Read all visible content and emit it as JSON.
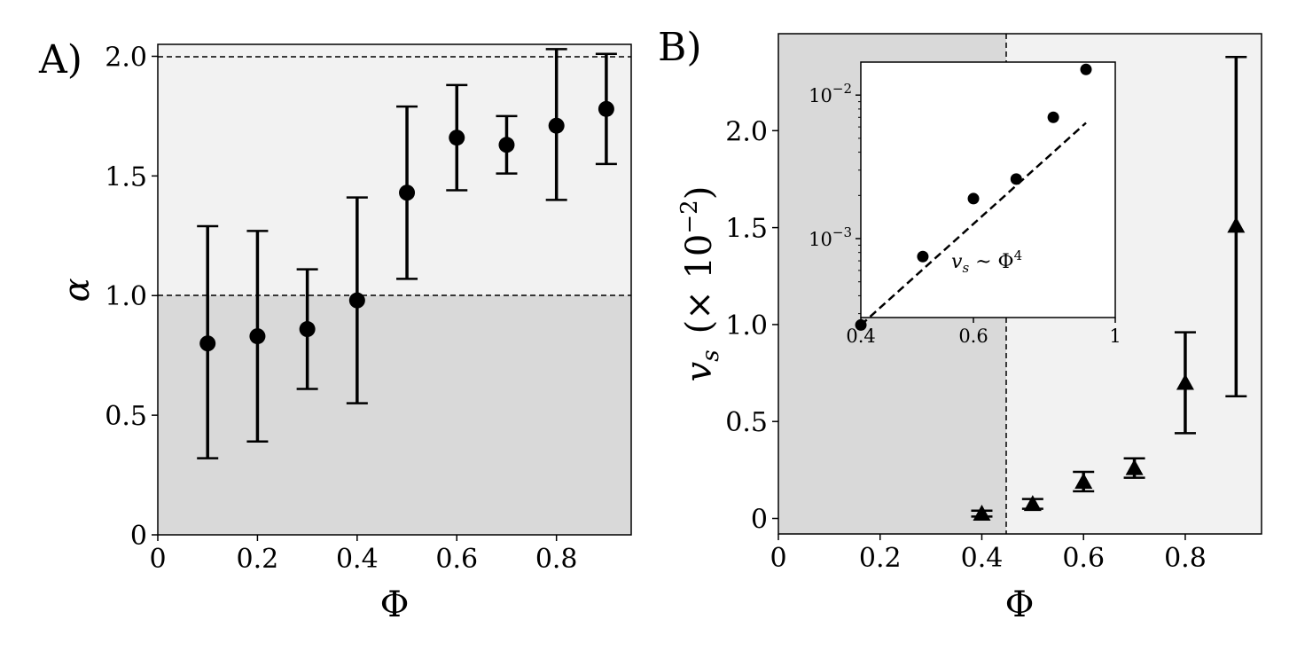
{
  "chart_data": [
    {
      "panel_label": "A)",
      "type": "scatter",
      "markers": "circle",
      "error_bars": true,
      "xlabel": "Φ",
      "ylabel": "α",
      "xlim": [
        0,
        0.95
      ],
      "ylim": [
        0,
        2.05
      ],
      "xticks": [
        0,
        0.2,
        0.4,
        0.6,
        0.8
      ],
      "xtick_labels": [
        "0",
        "0.2",
        "0.4",
        "0.6",
        "0.8"
      ],
      "yticks": [
        0,
        0.5,
        1.0,
        1.5,
        2.0
      ],
      "ytick_labels": [
        "0",
        "0.5",
        "1.0",
        "1.5",
        "2.0"
      ],
      "reference_lines": [
        1.0,
        2.0
      ],
      "shaded_regions": [
        {
          "y_from": 0,
          "y_to": 1.0,
          "color": "#d9d9d9"
        },
        {
          "y_from": 1.0,
          "y_to": 2.05,
          "color": "#f2f2f2"
        }
      ],
      "grid": false,
      "points": [
        {
          "x": 0.1,
          "y": 0.8,
          "lo": 0.32,
          "hi": 1.29
        },
        {
          "x": 0.2,
          "y": 0.83,
          "lo": 0.39,
          "hi": 1.27
        },
        {
          "x": 0.3,
          "y": 0.86,
          "lo": 0.61,
          "hi": 1.11
        },
        {
          "x": 0.4,
          "y": 0.98,
          "lo": 0.55,
          "hi": 1.41
        },
        {
          "x": 0.5,
          "y": 1.43,
          "lo": 1.07,
          "hi": 1.79
        },
        {
          "x": 0.6,
          "y": 1.66,
          "lo": 1.44,
          "hi": 1.88
        },
        {
          "x": 0.7,
          "y": 1.63,
          "lo": 1.51,
          "hi": 1.75
        },
        {
          "x": 0.8,
          "y": 1.71,
          "lo": 1.4,
          "hi": 2.03
        },
        {
          "x": 0.9,
          "y": 1.78,
          "lo": 1.55,
          "hi": 2.01
        }
      ]
    },
    {
      "panel_label": "B)",
      "type": "scatter",
      "markers": "triangle",
      "error_bars": true,
      "xlabel": "Φ",
      "ylabel_var": "v",
      "ylabel_sub": "s",
      "ylabel_scale": "(× 10",
      "ylabel_exp": "−2",
      "ylabel_close": ")",
      "xlim": [
        0,
        0.95
      ],
      "ylim": [
        -0.08,
        2.5
      ],
      "xticks": [
        0,
        0.2,
        0.4,
        0.6,
        0.8
      ],
      "xtick_labels": [
        "0",
        "0.2",
        "0.4",
        "0.6",
        "0.8"
      ],
      "yticks": [
        0,
        0.5,
        1.0,
        1.5,
        2.0
      ],
      "ytick_labels": [
        "0",
        "0.5",
        "1.0",
        "1.5",
        "2.0"
      ],
      "vertical_reference_line": 0.45,
      "shaded_regions": [
        {
          "x_from": 0,
          "x_to": 0.45,
          "color": "#d9d9d9"
        },
        {
          "x_from": 0.45,
          "x_to": 0.95,
          "color": "#f2f2f2"
        }
      ],
      "grid": false,
      "points": [
        {
          "x": 0.4,
          "y": 0.025,
          "lo": 0.01,
          "hi": 0.04
        },
        {
          "x": 0.5,
          "y": 0.075,
          "lo": 0.05,
          "hi": 0.1
        },
        {
          "x": 0.6,
          "y": 0.19,
          "lo": 0.14,
          "hi": 0.24
        },
        {
          "x": 0.7,
          "y": 0.26,
          "lo": 0.21,
          "hi": 0.31
        },
        {
          "x": 0.8,
          "y": 0.7,
          "lo": 0.44,
          "hi": 0.96
        },
        {
          "x": 0.9,
          "y": 1.51,
          "lo": 0.63,
          "hi": 2.38
        }
      ],
      "inset": {
        "type": "scatter",
        "scale": "log-log",
        "xlim_log": [
          -0.398,
          0
        ],
        "ylim_log": [
          -3.55,
          -1.77
        ],
        "xticks": [
          0.4,
          0.6,
          1
        ],
        "xtick_labels": [
          "0.4",
          "0.6",
          "1"
        ],
        "yticks": [
          0.001,
          0.01
        ],
        "ytick_base": "10",
        "ytick_exps": [
          "−3",
          "−2"
        ],
        "points": [
          {
            "x": 0.4,
            "y": 0.00025
          },
          {
            "x": 0.5,
            "y": 0.00075
          },
          {
            "x": 0.6,
            "y": 0.0019
          },
          {
            "x": 0.7,
            "y": 0.0026
          },
          {
            "x": 0.8,
            "y": 0.007
          },
          {
            "x": 0.9,
            "y": 0.0151
          }
        ],
        "fit_line": {
          "slope": 4,
          "x_from": 0.4,
          "x_to": 0.9,
          "y_at_start": 0.00025
        },
        "annotation_var": "v",
        "annotation_sub": "s",
        "annotation_rest": " ~ Φ",
        "annotation_exp": "4"
      }
    }
  ]
}
